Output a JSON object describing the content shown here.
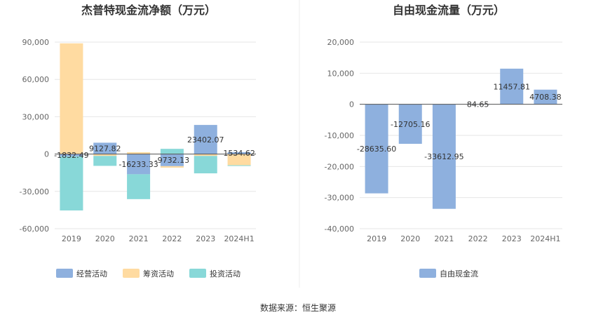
{
  "source_text": "数据来源：恒生聚源",
  "chart_data": [
    {
      "type": "bar",
      "stacked": true,
      "title": "杰普特现金流净额（万元）",
      "categories": [
        "2019",
        "2020",
        "2021",
        "2022",
        "2023",
        "2024H1"
      ],
      "ylim": [
        -60000,
        90000
      ],
      "yticks": [
        90000,
        60000,
        30000,
        0,
        -30000,
        -60000
      ],
      "ytick_labels": [
        "90,000",
        "60,000",
        "30,000",
        "0",
        "-30,000",
        "-60,000"
      ],
      "grid": true,
      "legend_position": "bottom-left",
      "series": [
        {
          "name": "经营活动",
          "color": "#8eb0de",
          "values": [
            -1832.49,
            9127.82,
            -16233.33,
            -9732.13,
            23402.07,
            1534.62
          ]
        },
        {
          "name": "筹资活动",
          "color": "#ffdba1",
          "values": [
            89000,
            -1500,
            1500,
            -1200,
            -1500,
            -9000
          ]
        },
        {
          "name": "投资活动",
          "color": "#88d8d8",
          "values": [
            -43500,
            -8000,
            -20000,
            4200,
            -14000,
            -600
          ]
        }
      ],
      "data_labels": [
        "-1832.49",
        "9127.82",
        "-16233.33",
        "-9732.13",
        "23402.07",
        "1534.62"
      ]
    },
    {
      "type": "bar",
      "title": "自由现金流量（万元）",
      "categories": [
        "2019",
        "2020",
        "2021",
        "2022",
        "2023",
        "2024H1"
      ],
      "ylim": [
        -40000,
        20000
      ],
      "yticks": [
        20000,
        10000,
        0,
        -10000,
        -20000,
        -30000,
        -40000
      ],
      "ytick_labels": [
        "20,000",
        "10,000",
        "0",
        "-10,000",
        "-20,000",
        "-30,000",
        "-40,000"
      ],
      "grid": true,
      "legend_position": "bottom-center",
      "series": [
        {
          "name": "自由现金流",
          "color": "#8eb0de",
          "values": [
            -28635.6,
            -12705.16,
            -33612.95,
            84.65,
            11457.81,
            4708.38
          ]
        }
      ],
      "data_labels": [
        "-28635.60",
        "-12705.16",
        "-33612.95",
        "84.65",
        "11457.81",
        "4708.38"
      ]
    }
  ]
}
